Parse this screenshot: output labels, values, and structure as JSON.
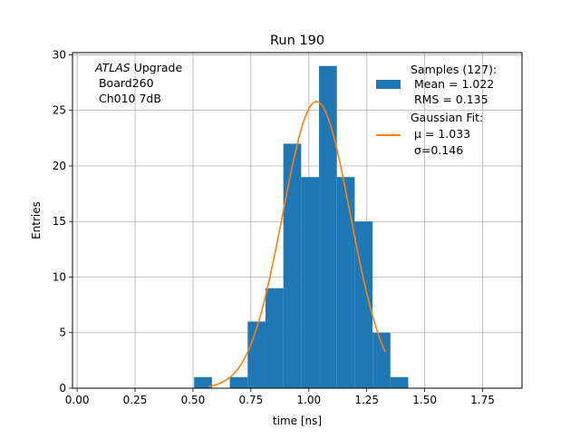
{
  "chart_data": {
    "type": "bar",
    "title": "Run 190",
    "xlabel": "time [ns]",
    "ylabel": "Entries",
    "xlim": [
      -0.02,
      1.92
    ],
    "ylim": [
      0,
      30.2
    ],
    "x_ticks": [
      0.0,
      0.25,
      0.5,
      0.75,
      1.0,
      1.25,
      1.5,
      1.75
    ],
    "x_tick_labels": [
      "0.00",
      "0.25",
      "0.50",
      "0.75",
      "1.00",
      "1.25",
      "1.50",
      "1.75"
    ],
    "y_ticks": [
      0,
      5,
      10,
      15,
      20,
      25,
      30
    ],
    "y_tick_labels": [
      "0",
      "5",
      "10",
      "15",
      "20",
      "25",
      "30"
    ],
    "grid": true,
    "legend_position": "top-right",
    "bins": [
      {
        "x0": 0.505,
        "x1": 0.582,
        "count": 1
      },
      {
        "x0": 0.582,
        "x1": 0.659,
        "count": 0
      },
      {
        "x0": 0.659,
        "x1": 0.736,
        "count": 1
      },
      {
        "x0": 0.736,
        "x1": 0.813,
        "count": 6
      },
      {
        "x0": 0.813,
        "x1": 0.89,
        "count": 9
      },
      {
        "x0": 0.89,
        "x1": 0.967,
        "count": 22
      },
      {
        "x0": 0.967,
        "x1": 1.044,
        "count": 19
      },
      {
        "x0": 1.044,
        "x1": 1.121,
        "count": 29
      },
      {
        "x0": 1.121,
        "x1": 1.198,
        "count": 19
      },
      {
        "x0": 1.198,
        "x1": 1.275,
        "count": 15
      },
      {
        "x0": 1.275,
        "x1": 1.352,
        "count": 5
      },
      {
        "x0": 1.352,
        "x1": 1.429,
        "count": 1
      }
    ],
    "fit": {
      "amplitude": 25.8,
      "mu": 1.033,
      "sigma": 0.146,
      "x_start": 0.57,
      "x_end": 1.33
    },
    "series": [
      {
        "name": "Samples (127):",
        "color": "#1f77b4"
      },
      {
        "name": "Gaussian Fit:",
        "color": "#ff7f0e"
      }
    ],
    "legend": [
      {
        "lines": [
          "Samples (127):",
          " Mean = 1.022",
          " RMS = 0.135"
        ]
      },
      {
        "lines": [
          "Gaussian Fit:",
          " μ = 1.033",
          " σ=0.146"
        ]
      }
    ],
    "annotation": {
      "italic": "ATLAS",
      "rest": " Upgrade",
      "lines": [
        " Board260",
        " Ch010 7dB"
      ]
    }
  }
}
